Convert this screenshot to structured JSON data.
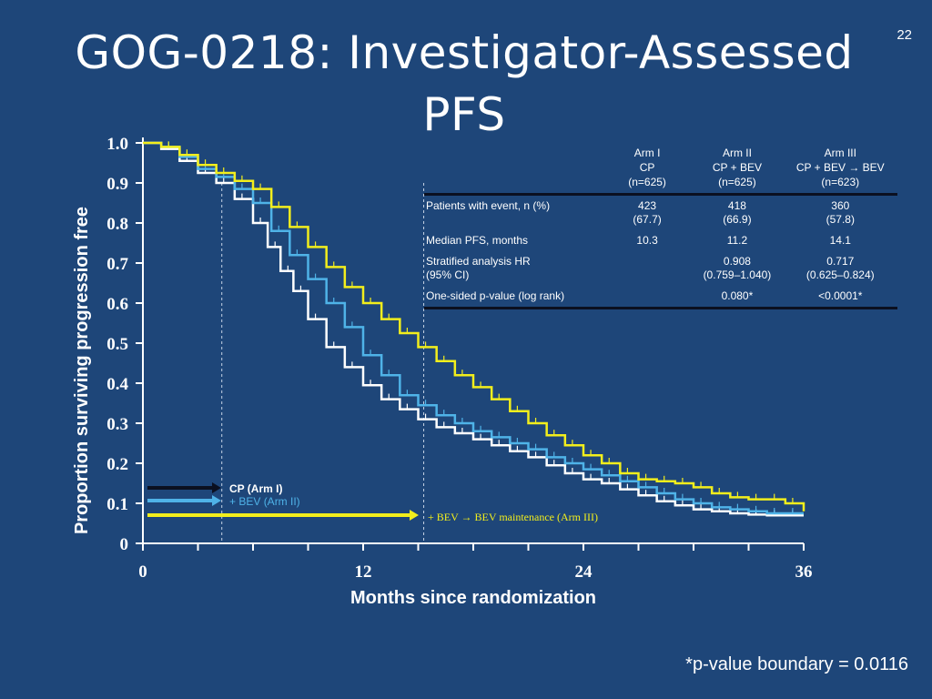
{
  "slide_number": "22",
  "title_line1": "GOG-0218: Investigator-Assessed",
  "title_line2": "PFS",
  "table": {
    "columns": [
      {
        "arm": "Arm I",
        "regimen": "CP",
        "n": "(n=625)"
      },
      {
        "arm": "Arm II",
        "regimen": "CP + BEV",
        "n": "(n=625)"
      },
      {
        "arm": "Arm III",
        "regimen": "CP + BEV → BEV",
        "n": "(n=623)"
      }
    ],
    "rows": [
      {
        "label1": "Patients with event, n (%)",
        "label2": "",
        "c1a": "423",
        "c1b": "(67.7)",
        "c2a": "418",
        "c2b": "(66.9)",
        "c3a": "360",
        "c3b": "(57.8)"
      },
      {
        "label1": "Median PFS, months",
        "label2": "",
        "c1a": "10.3",
        "c1b": "",
        "c2a": "11.2",
        "c2b": "",
        "c3a": "14.1",
        "c3b": ""
      },
      {
        "label1": "Stratified analysis HR",
        "label2": "(95% CI)",
        "c1a": "",
        "c1b": "",
        "c2a": "0.908",
        "c2b": "(0.759–1.040)",
        "c3a": "0.717",
        "c3b": "(0.625–0.824)"
      },
      {
        "label1": "One-sided p-value (log rank)",
        "label2": "",
        "c1a": "",
        "c1b": "",
        "c2a": "0.080*",
        "c2b": "",
        "c3a": "<0.0001*",
        "c3b": ""
      }
    ]
  },
  "footnote": "*p-value boundary = 0.0116",
  "chart_data": {
    "type": "line",
    "xlabel": "Months since randomization",
    "ylabel": "Proportion surviving progression free",
    "xlim": [
      0,
      36
    ],
    "ylim": [
      0,
      1.0
    ],
    "x_tick_labels": [
      "0",
      "12",
      "24",
      "36"
    ],
    "x_tick_values": [
      0,
      12,
      24,
      36
    ],
    "y_tick_labels": [
      "0",
      "0.1",
      "0.2",
      "0.3",
      "0.4",
      "0.5",
      "0.6",
      "0.7",
      "0.8",
      "0.9",
      "1.0"
    ],
    "y_tick_values": [
      0,
      0.1,
      0.2,
      0.3,
      0.4,
      0.5,
      0.6,
      0.7,
      0.8,
      0.9,
      1.0
    ],
    "median_markers": [
      4.3,
      15.3
    ],
    "series": [
      {
        "name": "CP (Arm I)",
        "color": "#ffffff",
        "x": [
          0,
          1,
          2,
          3,
          4,
          5,
          6,
          6.8,
          7.5,
          8.2,
          9,
          10,
          11,
          12,
          13,
          14,
          15,
          16,
          17,
          18,
          19,
          20,
          21,
          22,
          23,
          24,
          25,
          26,
          27,
          28,
          29,
          30,
          31,
          32,
          33,
          34,
          35,
          36
        ],
        "y": [
          1.0,
          0.985,
          0.955,
          0.925,
          0.9,
          0.86,
          0.8,
          0.74,
          0.68,
          0.63,
          0.56,
          0.49,
          0.44,
          0.395,
          0.36,
          0.335,
          0.31,
          0.29,
          0.275,
          0.26,
          0.245,
          0.23,
          0.215,
          0.195,
          0.175,
          0.16,
          0.15,
          0.135,
          0.12,
          0.105,
          0.095,
          0.085,
          0.08,
          0.075,
          0.072,
          0.07,
          0.07,
          0.07
        ]
      },
      {
        "name": "+ BEV (Arm II)",
        "color": "#4fb3e8",
        "x": [
          0,
          1,
          2,
          3,
          4,
          5,
          6,
          7,
          8,
          9,
          10,
          11,
          12,
          13,
          14,
          15,
          16,
          17,
          18,
          19,
          20,
          21,
          22,
          23,
          24,
          25,
          26,
          27,
          28,
          29,
          30,
          31,
          32,
          33,
          34,
          35,
          36
        ],
        "y": [
          1.0,
          0.99,
          0.965,
          0.935,
          0.915,
          0.885,
          0.85,
          0.78,
          0.72,
          0.66,
          0.6,
          0.54,
          0.47,
          0.42,
          0.37,
          0.345,
          0.32,
          0.3,
          0.28,
          0.265,
          0.25,
          0.235,
          0.215,
          0.2,
          0.185,
          0.17,
          0.155,
          0.14,
          0.125,
          0.11,
          0.1,
          0.09,
          0.085,
          0.08,
          0.075,
          0.075,
          0.075
        ]
      },
      {
        "name": "+ BEV → BEV maintenance (Arm III)",
        "color": "#f2ee1c",
        "x": [
          0,
          1,
          2,
          3,
          4,
          5,
          6,
          7,
          8,
          9,
          10,
          11,
          12,
          13,
          14,
          15,
          16,
          17,
          18,
          19,
          20,
          21,
          22,
          23,
          24,
          25,
          26,
          27,
          28,
          29,
          30,
          31,
          32,
          33,
          34,
          35,
          36
        ],
        "y": [
          1.0,
          0.99,
          0.97,
          0.945,
          0.925,
          0.905,
          0.885,
          0.84,
          0.79,
          0.74,
          0.69,
          0.64,
          0.6,
          0.56,
          0.525,
          0.49,
          0.455,
          0.42,
          0.39,
          0.36,
          0.33,
          0.3,
          0.27,
          0.245,
          0.22,
          0.2,
          0.175,
          0.16,
          0.155,
          0.15,
          0.14,
          0.125,
          0.115,
          0.11,
          0.11,
          0.1,
          0.08
        ]
      }
    ],
    "legend_arrows": [
      {
        "label": "CP (Arm I)",
        "color": "#0b1020",
        "label_color": "#ffffff"
      },
      {
        "label": "+ BEV (Arm II)",
        "color": "#4fb3e8",
        "label_color": "#4fb3e8"
      },
      {
        "label": "+ BEV → BEV maintenance (Arm III)",
        "color": "#f2ee1c",
        "label_color": "#f2ee1c"
      }
    ]
  }
}
